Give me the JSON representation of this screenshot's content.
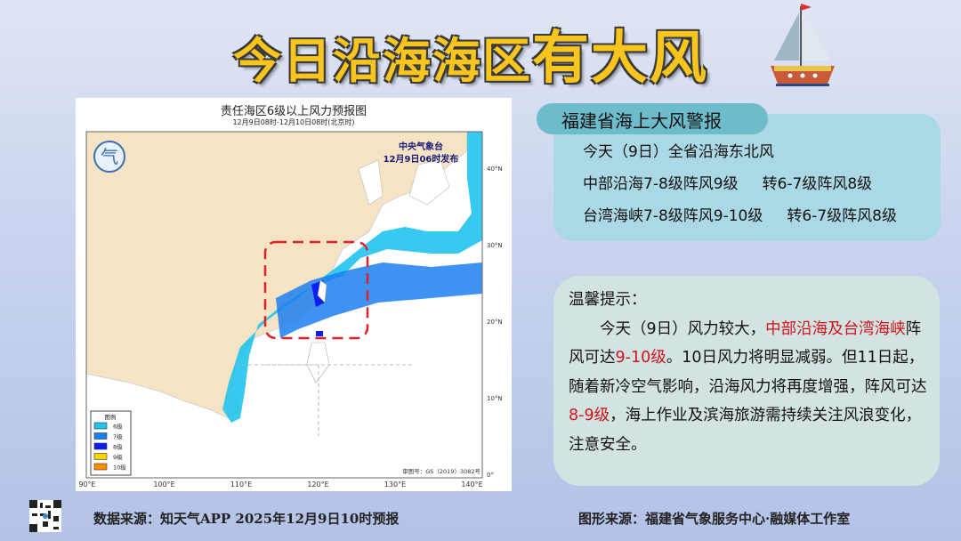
{
  "header": {
    "title_part1": "今日沿海海区",
    "title_part2": "有大风",
    "boat_icon": "sailboat-icon"
  },
  "map": {
    "title": "责任海区6级以上风力预报图",
    "subtitle": "12月9日08时-12月10日08时(北京时)",
    "issuer": "中央气象台",
    "issue_time": "12月9日06时发布",
    "approval": "审图号：GS（2019）3082号",
    "lon_ticks": [
      "90°E",
      "100°E",
      "110°E",
      "120°E",
      "130°E",
      "140°E"
    ],
    "lat_ticks": [
      "40°N",
      "30°N",
      "20°N",
      "10°N",
      "0°"
    ],
    "legend": {
      "title": "图例",
      "items": [
        {
          "label": "6级",
          "color": "#22c3f0"
        },
        {
          "label": "7级",
          "color": "#1b7ff0"
        },
        {
          "label": "8级",
          "color": "#0a1ef0"
        },
        {
          "label": "9级",
          "color": "#ffd200"
        },
        {
          "label": "10级",
          "color": "#ff8c00"
        }
      ]
    },
    "land_color": "#f6e3c3"
  },
  "warning": {
    "title": "福建省海上大风警报",
    "lines": [
      "今天（9日）全省沿海东北风",
      "中部沿海7-8级阵风9级     转6-7级阵风8级",
      "台湾海峡7-8级阵风9-10级     转6-7级阵风8级"
    ]
  },
  "tip": {
    "title": "温馨提示：",
    "segments": [
      {
        "text": "今天（9日）风力较大，",
        "red": false
      },
      {
        "text": "中部沿海及台湾海峡",
        "red": true
      },
      {
        "text": "阵风可达",
        "red": false
      },
      {
        "text": "9-10级",
        "red": true
      },
      {
        "text": "。10日风力将明显减弱。但11日起，随着新冷空气影响，沿海风力将再度增强，阵风可达",
        "red": false
      },
      {
        "text": "8-9级",
        "red": true
      },
      {
        "text": "，海上作业及滨海旅游需持续关注风浪变化，注意安全。",
        "red": false
      }
    ],
    "highlight_color": "#d0121b"
  },
  "footer": {
    "data_source": "数据来源：知天气APP 2025年12月9日10时预报",
    "graphic_source": "图形来源：福建省气象服务中心·融媒体工作室",
    "qr_icon": "qr-code-icon"
  }
}
